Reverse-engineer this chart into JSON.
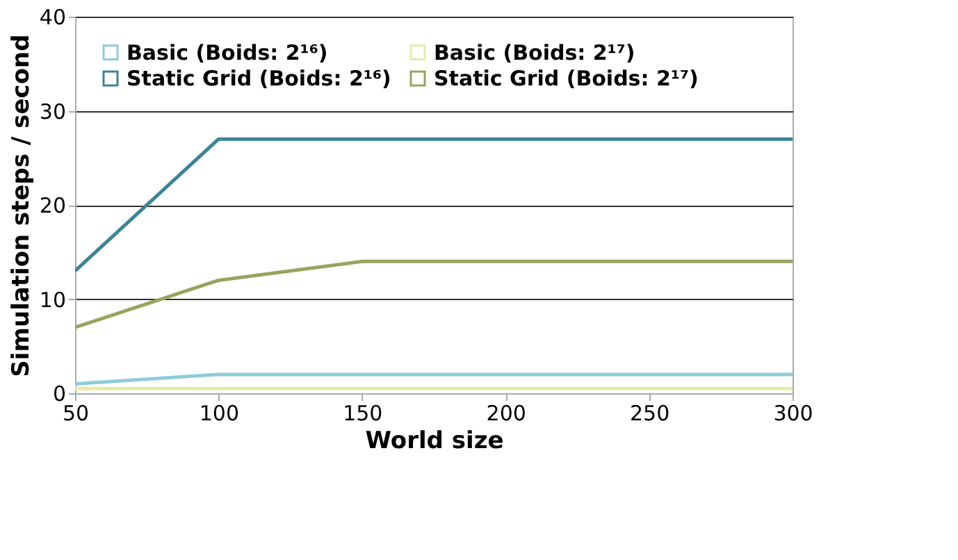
{
  "chart_data": {
    "type": "line",
    "xlabel": "World size",
    "ylabel": "Simulation steps / second",
    "x": [
      50,
      100,
      150,
      200,
      250,
      300
    ],
    "series": [
      {
        "name": "Basic (Boids: 2¹⁶)",
        "color": "#8ecbdb",
        "values": [
          1,
          2,
          2,
          2,
          2,
          2
        ]
      },
      {
        "name": "Static Grid (Boids: 2¹⁶)",
        "color": "#3b8496",
        "values": [
          13,
          27,
          27,
          27,
          27,
          27
        ]
      },
      {
        "name": "Basic (Boids: 2¹⁷)",
        "color": "#e6eba8",
        "values": [
          0.5,
          0.5,
          0.5,
          0.5,
          0.5,
          0.5
        ]
      },
      {
        "name": "Static Grid (Boids: 2¹⁷)",
        "color": "#9aa35e",
        "values": [
          7,
          12,
          14,
          14,
          14,
          14
        ]
      }
    ],
    "xlim": [
      50,
      300
    ],
    "xticks": [
      50,
      100,
      150,
      200,
      250,
      300
    ],
    "ylim": [
      0,
      40
    ],
    "yticks": [
      0,
      10,
      20,
      30,
      40
    ],
    "grid": "y",
    "legend": "top left",
    "marker": "none",
    "line_style": "solid"
  }
}
